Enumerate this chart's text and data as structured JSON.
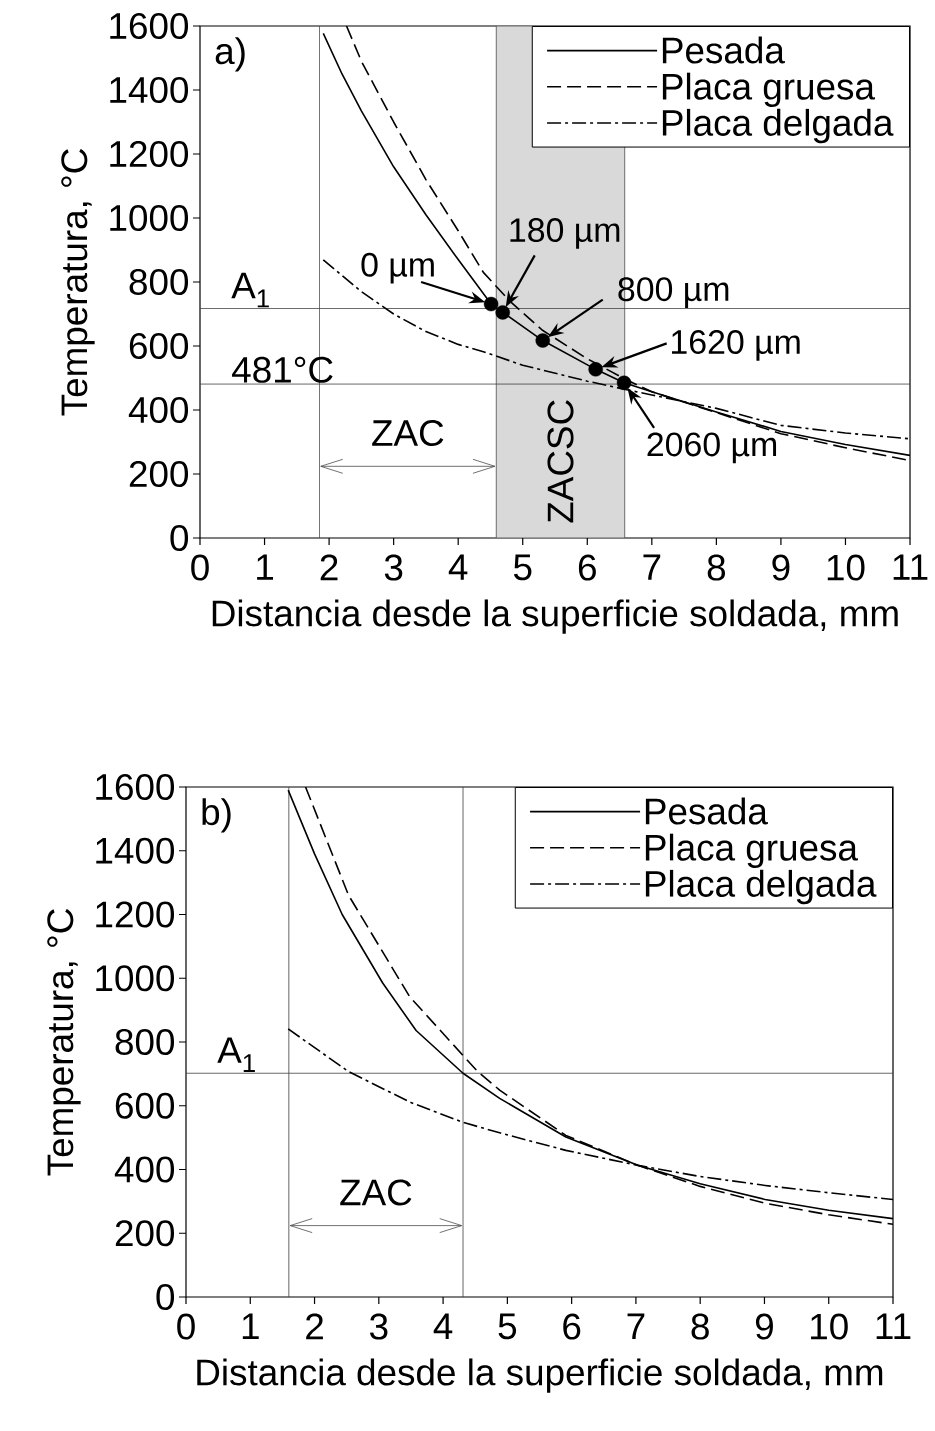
{
  "chart_data": [
    {
      "type": "line",
      "xlabel": "Distancia desde la superficie soldada, mm",
      "ylabel": "Temperatura, °C",
      "xlim": [
        0,
        11
      ],
      "ylim": [
        0,
        1600
      ],
      "xticks": [
        0,
        1,
        2,
        3,
        4,
        5,
        6,
        7,
        8,
        9,
        10,
        11
      ],
      "yticks": [
        0,
        200,
        400,
        600,
        800,
        1000,
        1200,
        1400,
        1600
      ],
      "legend": "top right",
      "annotations": [
        "a)",
        "ZAC",
        {
          "text": "0 µm",
          "x": 4.51,
          "y": 731
        },
        {
          "text": "180 µm",
          "x": 4.69,
          "y": 705
        },
        {
          "text": "800 µm",
          "x": 5.31,
          "y": 617
        },
        {
          "text": "1620 µm",
          "x": 6.13,
          "y": 527
        },
        {
          "text": "2060 µm",
          "x": 6.57,
          "y": 485
        }
      ],
      "series": [
        {
          "name": "Pesada",
          "color": "#000000",
          "line_style": "solid",
          "x": [
            1.91,
            2.2,
            2.5,
            3,
            3.5,
            4,
            4.51,
            4.69,
            5.31,
            6.13,
            6.57,
            7,
            8,
            9,
            10,
            11
          ],
          "values": [
            1577,
            1450,
            1335,
            1160,
            1010,
            870,
            731,
            705,
            617,
            527,
            485,
            457,
            394,
            333,
            292,
            258
          ]
        },
        {
          "name": "Placa gruesa",
          "color": "#000000",
          "line_style": "dashed",
          "x": [
            2.27,
            2.5,
            3,
            3.5,
            4,
            4.39,
            4.8,
            5.3,
            6,
            6.6,
            7,
            8,
            9,
            10,
            11
          ],
          "values": [
            1600,
            1490,
            1300,
            1120,
            960,
            830,
            740,
            650,
            560,
            495,
            457,
            392,
            326,
            282,
            242
          ]
        },
        {
          "name": "Placa delgada",
          "color": "#000000",
          "line_style": "dashdot",
          "x": [
            1.91,
            2.5,
            3,
            3.5,
            4,
            4.39,
            5,
            5.5,
            6,
            6.57,
            7,
            8,
            9,
            10,
            11
          ],
          "values": [
            869,
            770,
            700,
            645,
            605,
            582,
            540,
            515,
            490,
            465,
            447,
            405,
            352,
            328,
            310
          ]
        },
        {
          "type": "scatter",
          "color": "#000000",
          "marker": "circle",
          "x": [
            4.51,
            4.69,
            5.31,
            6.13,
            6.57
          ],
          "values": [
            731,
            705,
            617,
            527,
            485
          ]
        }
      ],
      "ref_lines": [
        {
          "axis": "x",
          "value": 1.85
        },
        {
          "axis": "y",
          "value": 717,
          "label": "A$_{1}$"
        },
        {
          "axis": "y",
          "value": 481,
          "label": "481°C"
        }
      ],
      "bands": [
        {
          "axis": "x",
          "from": 4.59,
          "to": 6.58,
          "label": "ZACSC"
        }
      ]
    },
    {
      "type": "line",
      "xlabel": "Distancia desde la superficie soldada, mm",
      "ylabel": "Temperatura, °C",
      "xlim": [
        0,
        11
      ],
      "ylim": [
        0,
        1600
      ],
      "xticks": [
        0,
        1,
        2,
        3,
        4,
        5,
        6,
        7,
        8,
        9,
        10,
        11
      ],
      "yticks": [
        0,
        200,
        400,
        600,
        800,
        1000,
        1200,
        1400,
        1600
      ],
      "legend": "top right",
      "annotations": [
        "b)",
        "ZAC"
      ],
      "series": [
        {
          "name": "Pesada",
          "color": "#000000",
          "line_style": "solid",
          "x": [
            1.59,
            2,
            2.43,
            3.06,
            3.58,
            4.31,
            4.88,
            5.91,
            7.03,
            8,
            9.01,
            10,
            11
          ],
          "values": [
            1590,
            1390,
            1200,
            985,
            836,
            702,
            623,
            502,
            413,
            355,
            306,
            272,
            246
          ]
        },
        {
          "name": "Placa gruesa",
          "color": "#000000",
          "line_style": "dashed",
          "x": [
            1.86,
            2.53,
            3.48,
            4.53,
            4.88,
            5.91,
            7.03,
            8,
            9.01,
            10,
            11
          ],
          "values": [
            1600,
            1260,
            942,
            709,
            649,
            507,
            413,
            347,
            294,
            258,
            228
          ]
        },
        {
          "name": "Placa delgada",
          "color": "#000000",
          "line_style": "dashdot",
          "x": [
            1.59,
            2.53,
            3.5,
            4.31,
            4.88,
            5.91,
            7.03,
            8,
            9.01,
            10,
            11
          ],
          "values": [
            841,
            707,
            610,
            548,
            515,
            460,
            413,
            378,
            350,
            327,
            306
          ]
        }
      ],
      "ref_lines": [
        {
          "axis": "x",
          "value": 1.6
        },
        {
          "axis": "x",
          "value": 4.31
        },
        {
          "axis": "y",
          "value": 702,
          "label": "A$_{1}$"
        }
      ]
    }
  ]
}
